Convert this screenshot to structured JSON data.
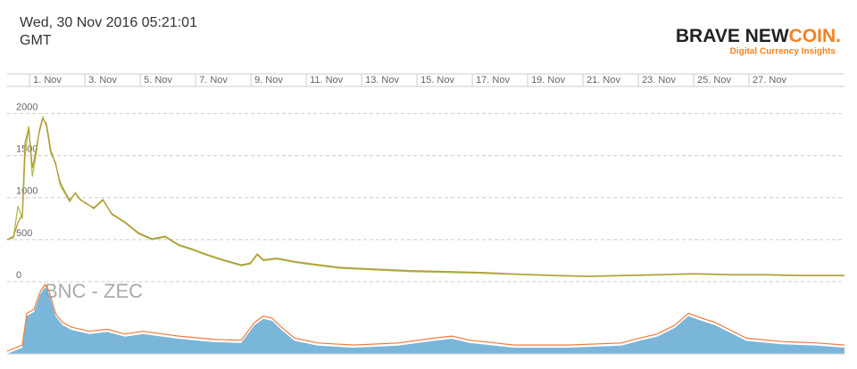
{
  "header": {
    "timestamp": "Wed, 30 Nov 2016 05:21:01",
    "timezone": "GMT"
  },
  "logo": {
    "brand": "BRAVE NEW",
    "accent": "COIN.",
    "tagline": "Digital Currency Insights"
  },
  "chart_data": [
    {
      "type": "line",
      "xlim": [
        0.19,
        30.45
      ],
      "xticks": [
        {
          "value": 1,
          "label": "1. Nov"
        },
        {
          "value": 3,
          "label": "3. Nov"
        },
        {
          "value": 5,
          "label": "5. Nov"
        },
        {
          "value": 7,
          "label": "7. Nov"
        },
        {
          "value": 9,
          "label": "9. Nov"
        },
        {
          "value": 11,
          "label": "11. Nov"
        },
        {
          "value": 13,
          "label": "13. Nov"
        },
        {
          "value": 15,
          "label": "15. Nov"
        },
        {
          "value": 17,
          "label": "17. Nov"
        },
        {
          "value": 19,
          "label": "19. Nov"
        },
        {
          "value": 21,
          "label": "21. Nov"
        },
        {
          "value": 23,
          "label": "23. Nov"
        },
        {
          "value": 25,
          "label": "25. Nov"
        },
        {
          "value": 27,
          "label": "27. Nov"
        }
      ],
      "ylim": [
        0,
        2450
      ],
      "yticks": [
        0,
        500,
        1000,
        1500,
        2000
      ],
      "grid": true,
      "x": [
        0.19,
        0.42,
        0.58,
        0.74,
        0.84,
        0.97,
        1.1,
        1.23,
        1.35,
        1.48,
        1.61,
        1.77,
        1.94,
        2.1,
        2.26,
        2.45,
        2.65,
        2.84,
        3.03,
        3.32,
        3.65,
        3.97,
        4.45,
        4.94,
        5.42,
        5.9,
        6.39,
        6.87,
        7.35,
        8.0,
        8.65,
        8.97,
        9.23,
        9.45,
        9.94,
        10.58,
        11.23,
        12.2,
        13.48,
        14.77,
        16.06,
        17.35,
        18.65,
        19.94,
        21.23,
        22.5,
        23.8,
        25.0,
        26.3,
        27.5,
        28.8,
        30.45
      ],
      "series": [
        {
          "color": "#a6c24a",
          "values": [
            500,
            520,
            900,
            750,
            1500,
            1850,
            1250,
            1500,
            1800,
            1960,
            1850,
            1520,
            1420,
            1150,
            1060,
            950,
            1060,
            980,
            930,
            880,
            980,
            800,
            700,
            570,
            500,
            530,
            430,
            380,
            320,
            250,
            190,
            210,
            320,
            250,
            270,
            230,
            200,
            160,
            140,
            120,
            110,
            100,
            85,
            70,
            60,
            70,
            80,
            90,
            80,
            80,
            70,
            70
          ]
        },
        {
          "color": "#b8973a",
          "values": [
            500,
            540,
            700,
            800,
            1660,
            1830,
            1350,
            1560,
            1780,
            1940,
            1880,
            1560,
            1400,
            1190,
            1080,
            970,
            1050,
            970,
            940,
            870,
            970,
            810,
            710,
            580,
            510,
            540,
            440,
            390,
            330,
            260,
            200,
            220,
            330,
            260,
            280,
            240,
            210,
            170,
            150,
            130,
            120,
            110,
            90,
            75,
            65,
            75,
            85,
            95,
            85,
            85,
            75,
            75
          ]
        }
      ]
    },
    {
      "type": "area",
      "title": "BNC - ZEC",
      "xlim": [
        0.19,
        30.45
      ],
      "ylim": [
        0,
        100
      ],
      "x": [
        0.19,
        0.74,
        0.9,
        1.16,
        1.39,
        1.55,
        1.71,
        1.94,
        2.19,
        2.52,
        3.16,
        3.81,
        4.45,
        5.1,
        6.39,
        7.68,
        8.65,
        9.13,
        9.45,
        9.77,
        10.1,
        10.58,
        11.42,
        12.71,
        14.32,
        15.61,
        16.26,
        16.9,
        18.52,
        20.45,
        22.39,
        23.03,
        23.68,
        24.32,
        24.81,
        25.29,
        25.77,
        26.26,
        26.9,
        28.19,
        29.48,
        30.45
      ],
      "series": [
        {
          "color": "#6aaed6",
          "stroke": "#f07a3a",
          "values": [
            0,
            9,
            55,
            61,
            87,
            97,
            87,
            55,
            42,
            35,
            29,
            32,
            25,
            29,
            22,
            17,
            16,
            42,
            51,
            48,
            35,
            19,
            12,
            9,
            12,
            19,
            22,
            16,
            9,
            9,
            12,
            19,
            25,
            38,
            55,
            48,
            42,
            32,
            19,
            14,
            12,
            9
          ]
        }
      ]
    }
  ]
}
